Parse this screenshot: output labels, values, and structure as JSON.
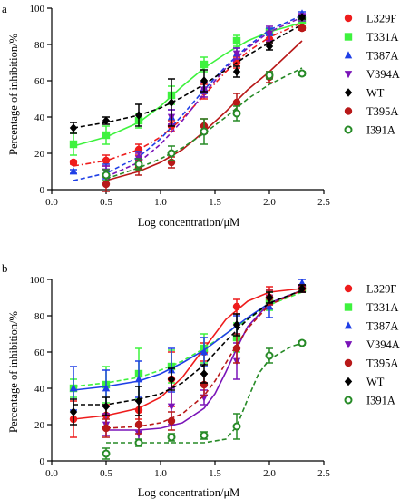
{
  "chart_data": [
    {
      "type": "scatter",
      "panel": "a",
      "xlabel": "Log concentration/μM",
      "ylabel": "Percentage of inhibition/%",
      "xlim": [
        0,
        2.5
      ],
      "ylim": [
        0,
        100
      ],
      "xticks": [
        "0.0",
        "0.5",
        "1.0",
        "1.5",
        "2.0",
        "2.5"
      ],
      "yticks": [
        "0",
        "20",
        "40",
        "60",
        "80",
        "100"
      ],
      "legend_position": "right",
      "series": [
        {
          "name": "L329F",
          "color": "#ee1c1c",
          "marker": "circle",
          "line": "dashdot",
          "x": [
            0.2,
            0.5,
            0.8,
            1.1,
            1.4,
            1.7,
            2.0,
            2.3
          ],
          "y": [
            15,
            16,
            22,
            35,
            54,
            70,
            83,
            89
          ],
          "err": [
            1,
            3,
            3,
            3,
            4,
            3,
            2,
            1
          ],
          "curve": [
            [
              0.2,
              13
            ],
            [
              0.5,
              16
            ],
            [
              0.8,
              22
            ],
            [
              1.0,
              29
            ],
            [
              1.2,
              39
            ],
            [
              1.4,
              52
            ],
            [
              1.6,
              65
            ],
            [
              1.8,
              76
            ],
            [
              2.0,
              84
            ],
            [
              2.3,
              92
            ]
          ]
        },
        {
          "name": "T331A",
          "color": "#3ef23e",
          "marker": "square",
          "line": "solid",
          "x": [
            0.2,
            0.5,
            0.8,
            1.1,
            1.4,
            1.7,
            2.0,
            2.3
          ],
          "y": [
            25,
            30,
            38,
            52,
            69,
            82,
            87,
            93
          ],
          "err": [
            6,
            5,
            4,
            5,
            4,
            3,
            2,
            1
          ],
          "curve": [
            [
              0.2,
              24
            ],
            [
              0.5,
              29
            ],
            [
              0.8,
              37
            ],
            [
              1.0,
              46
            ],
            [
              1.2,
              57
            ],
            [
              1.4,
              67
            ],
            [
              1.6,
              75
            ],
            [
              1.8,
              82
            ],
            [
              2.0,
              87
            ],
            [
              2.3,
              92
            ]
          ]
        },
        {
          "name": "T387A",
          "color": "#1f3fe6",
          "marker": "triangle",
          "line": "dashed",
          "x": [
            0.2,
            0.5,
            0.8,
            1.1,
            1.4,
            1.7,
            2.0,
            2.3
          ],
          "y": [
            10,
            10,
            18,
            40,
            56,
            75,
            87,
            97
          ],
          "err": [
            1,
            4,
            3,
            4,
            3,
            3,
            2,
            1
          ],
          "curve": [
            [
              0.2,
              5
            ],
            [
              0.5,
              9
            ],
            [
              0.8,
              18
            ],
            [
              1.0,
              28
            ],
            [
              1.2,
              41
            ],
            [
              1.4,
              55
            ],
            [
              1.6,
              68
            ],
            [
              1.8,
              79
            ],
            [
              2.0,
              88
            ],
            [
              2.3,
              96
            ]
          ]
        },
        {
          "name": "V394A",
          "color": "#7a14b8",
          "marker": "triangle-down",
          "line": "dashed",
          "x": [
            0.5,
            0.8,
            1.1,
            1.4,
            1.7,
            2.0,
            2.3
          ],
          "y": [
            10,
            17,
            40,
            55,
            75,
            86,
            95
          ],
          "err": [
            3,
            3,
            4,
            4,
            3,
            4,
            2
          ],
          "curve": [
            [
              0.5,
              7
            ],
            [
              0.8,
              15
            ],
            [
              1.0,
              25
            ],
            [
              1.2,
              38
            ],
            [
              1.4,
              53
            ],
            [
              1.6,
              67
            ],
            [
              1.8,
              78
            ],
            [
              2.0,
              87
            ],
            [
              2.3,
              95
            ]
          ]
        },
        {
          "name": "WT",
          "color": "#000000",
          "marker": "diamond",
          "line": "dashed",
          "x": [
            0.2,
            0.5,
            0.8,
            1.1,
            1.4,
            1.7,
            2.0,
            2.3
          ],
          "y": [
            34,
            38,
            41,
            48,
            60,
            65,
            79,
            95
          ],
          "err": [
            3,
            2,
            6,
            13,
            6,
            3,
            2,
            1
          ],
          "curve": [
            [
              0.2,
              34
            ],
            [
              0.5,
              37
            ],
            [
              0.8,
              41
            ],
            [
              1.0,
              45
            ],
            [
              1.2,
              51
            ],
            [
              1.4,
              58
            ],
            [
              1.6,
              66
            ],
            [
              1.8,
              74
            ],
            [
              2.0,
              81
            ],
            [
              2.3,
              91
            ]
          ]
        },
        {
          "name": "T395A",
          "color": "#b81818",
          "marker": "circle",
          "line": "solid",
          "x": [
            0.5,
            0.8,
            1.1,
            1.4,
            1.7,
            2.0,
            2.3
          ],
          "y": [
            3,
            12,
            15,
            35,
            48,
            62,
            89
          ],
          "err": [
            4,
            4,
            3,
            4,
            5,
            3,
            1
          ],
          "curve": [
            [
              0.5,
              5
            ],
            [
              0.8,
              10
            ],
            [
              1.0,
              15
            ],
            [
              1.2,
              22
            ],
            [
              1.4,
              32
            ],
            [
              1.6,
              43
            ],
            [
              1.8,
              55
            ],
            [
              2.0,
              65
            ],
            [
              2.3,
              82
            ]
          ]
        },
        {
          "name": "I391A",
          "color": "#268a26",
          "marker": "open-circle",
          "line": "dashed",
          "x": [
            0.5,
            0.8,
            1.1,
            1.4,
            1.7,
            2.0,
            2.3
          ],
          "y": [
            8,
            14,
            20,
            32,
            42,
            63,
            64
          ],
          "err": [
            3,
            3,
            4,
            7,
            4,
            2,
            1
          ],
          "curve": [
            [
              0.5,
              6
            ],
            [
              0.8,
              12
            ],
            [
              1.0,
              17
            ],
            [
              1.2,
              23
            ],
            [
              1.4,
              31
            ],
            [
              1.6,
              40
            ],
            [
              1.8,
              50
            ],
            [
              2.0,
              58
            ],
            [
              2.3,
              67
            ]
          ]
        }
      ]
    },
    {
      "type": "scatter",
      "panel": "b",
      "xlabel": "Log concentration/μM",
      "ylabel": "Percentage of inhibition/%",
      "xlim": [
        0,
        2.5
      ],
      "ylim": [
        0,
        100
      ],
      "xticks": [
        "0.0",
        "0.5",
        "1.0",
        "1.5",
        "2.0",
        "2.5"
      ],
      "yticks": [
        "0",
        "20",
        "40",
        "60",
        "80",
        "100"
      ],
      "legend_position": "right",
      "series": [
        {
          "name": "L329F",
          "color": "#ee1c1c",
          "marker": "circle",
          "line": "solid",
          "x": [
            0.2,
            0.5,
            0.8,
            1.1,
            1.4,
            1.7,
            2.0,
            2.3
          ],
          "y": [
            23,
            25,
            28,
            45,
            60,
            85,
            90,
            95
          ],
          "err": [
            10,
            6,
            5,
            15,
            5,
            4,
            6,
            2
          ],
          "curve": [
            [
              0.2,
              23
            ],
            [
              0.5,
              25
            ],
            [
              0.8,
              29
            ],
            [
              1.0,
              35
            ],
            [
              1.2,
              46
            ],
            [
              1.4,
              62
            ],
            [
              1.6,
              78
            ],
            [
              1.8,
              88
            ],
            [
              2.0,
              93
            ],
            [
              2.3,
              95
            ]
          ]
        },
        {
          "name": "T331A",
          "color": "#3ef23e",
          "marker": "square",
          "line": "dashed",
          "x": [
            0.2,
            0.5,
            0.8,
            1.1,
            1.4,
            1.7,
            2.0,
            2.3
          ],
          "y": [
            40,
            42,
            48,
            52,
            62,
            68,
            88,
            95
          ],
          "err": [
            5,
            10,
            14,
            9,
            8,
            8,
            5,
            2
          ],
          "curve": [
            [
              0.2,
              41
            ],
            [
              0.5,
              43
            ],
            [
              0.8,
              46
            ],
            [
              1.0,
              50
            ],
            [
              1.2,
              55
            ],
            [
              1.4,
              62
            ],
            [
              1.6,
              70
            ],
            [
              1.8,
              78
            ],
            [
              2.0,
              86
            ],
            [
              2.3,
              93
            ]
          ]
        },
        {
          "name": "T387A",
          "color": "#1f3fe6",
          "marker": "triangle",
          "line": "solid",
          "x": [
            0.2,
            0.5,
            0.8,
            1.1,
            1.4,
            1.7,
            2.0,
            2.3
          ],
          "y": [
            40,
            40,
            45,
            50,
            60,
            75,
            85,
            98
          ],
          "err": [
            12,
            10,
            10,
            12,
            8,
            5,
            6,
            2
          ],
          "curve": [
            [
              0.2,
              39
            ],
            [
              0.5,
              41
            ],
            [
              0.8,
              44
            ],
            [
              1.0,
              48
            ],
            [
              1.2,
              54
            ],
            [
              1.4,
              61
            ],
            [
              1.6,
              70
            ],
            [
              1.8,
              79
            ],
            [
              2.0,
              87
            ],
            [
              2.3,
              94
            ]
          ]
        },
        {
          "name": "V394A",
          "color": "#7a14b8",
          "marker": "triangle-down",
          "line": "solid",
          "x": [
            0.5,
            0.8,
            1.1,
            1.4,
            1.7,
            2.0,
            2.3
          ],
          "y": [
            20,
            15,
            30,
            35,
            55,
            90,
            95
          ],
          "err": [
            6,
            5,
            10,
            4,
            10,
            4,
            2
          ],
          "curve": [
            [
              0.5,
              17
            ],
            [
              0.8,
              17
            ],
            [
              1.0,
              18
            ],
            [
              1.2,
              21
            ],
            [
              1.4,
              29
            ],
            [
              1.5,
              37
            ],
            [
              1.6,
              49
            ],
            [
              1.7,
              62
            ],
            [
              1.8,
              74
            ],
            [
              2.0,
              87
            ],
            [
              2.3,
              94
            ]
          ]
        },
        {
          "name": "T395A",
          "color": "#b81818",
          "marker": "circle",
          "line": "dashed",
          "x": [
            0.5,
            0.8,
            1.1,
            1.4,
            1.7,
            2.0,
            2.3
          ],
          "y": [
            18,
            20,
            22,
            42,
            62,
            90,
            95
          ],
          "err": [
            5,
            5,
            5,
            6,
            8,
            4,
            2
          ],
          "curve": [
            [
              0.5,
              18
            ],
            [
              0.8,
              19
            ],
            [
              1.0,
              21
            ],
            [
              1.2,
              26
            ],
            [
              1.4,
              36
            ],
            [
              1.5,
              44
            ],
            [
              1.6,
              54
            ],
            [
              1.7,
              64
            ],
            [
              1.8,
              73
            ],
            [
              2.0,
              86
            ],
            [
              2.3,
              94
            ]
          ]
        },
        {
          "name": "WT",
          "color": "#000000",
          "marker": "diamond",
          "line": "dashed",
          "x": [
            0.2,
            0.5,
            0.8,
            1.1,
            1.4,
            1.7,
            2.0,
            2.3
          ],
          "y": [
            27,
            30,
            33,
            45,
            48,
            75,
            90,
            95
          ],
          "err": [
            7,
            5,
            8,
            6,
            5,
            6,
            3,
            2
          ],
          "curve": [
            [
              0.2,
              31
            ],
            [
              0.5,
              31
            ],
            [
              0.8,
              34
            ],
            [
              1.0,
              37
            ],
            [
              1.2,
              43
            ],
            [
              1.4,
              53
            ],
            [
              1.6,
              66
            ],
            [
              1.8,
              78
            ],
            [
              2.0,
              87
            ],
            [
              2.3,
              94
            ]
          ]
        },
        {
          "name": "I391A",
          "color": "#268a26",
          "marker": "open-circle",
          "line": "dashed",
          "x": [
            0.5,
            0.8,
            1.1,
            1.4,
            1.7,
            2.0,
            2.3
          ],
          "y": [
            4,
            10,
            13,
            14,
            19,
            58,
            65
          ],
          "err": [
            3,
            2,
            2,
            2,
            7,
            4,
            1
          ],
          "curve": [
            [
              0.5,
              10
            ],
            [
              0.8,
              10
            ],
            [
              1.0,
              10
            ],
            [
              1.2,
              10
            ],
            [
              1.4,
              10
            ],
            [
              1.6,
              12
            ],
            [
              1.7,
              19
            ],
            [
              1.8,
              34
            ],
            [
              1.9,
              48
            ],
            [
              2.0,
              56
            ],
            [
              2.2,
              63
            ],
            [
              2.3,
              65
            ]
          ]
        }
      ]
    }
  ],
  "panels": {
    "a": {
      "letter": "a",
      "legend_order": [
        "L329F",
        "T331A",
        "T387A",
        "V394A",
        "WT",
        "T395A",
        "I391A"
      ]
    },
    "b": {
      "letter": "b",
      "legend_order": [
        "L329F",
        "T331A",
        "T387A",
        "V394A",
        "T395A",
        "WT",
        "I391A"
      ]
    }
  }
}
